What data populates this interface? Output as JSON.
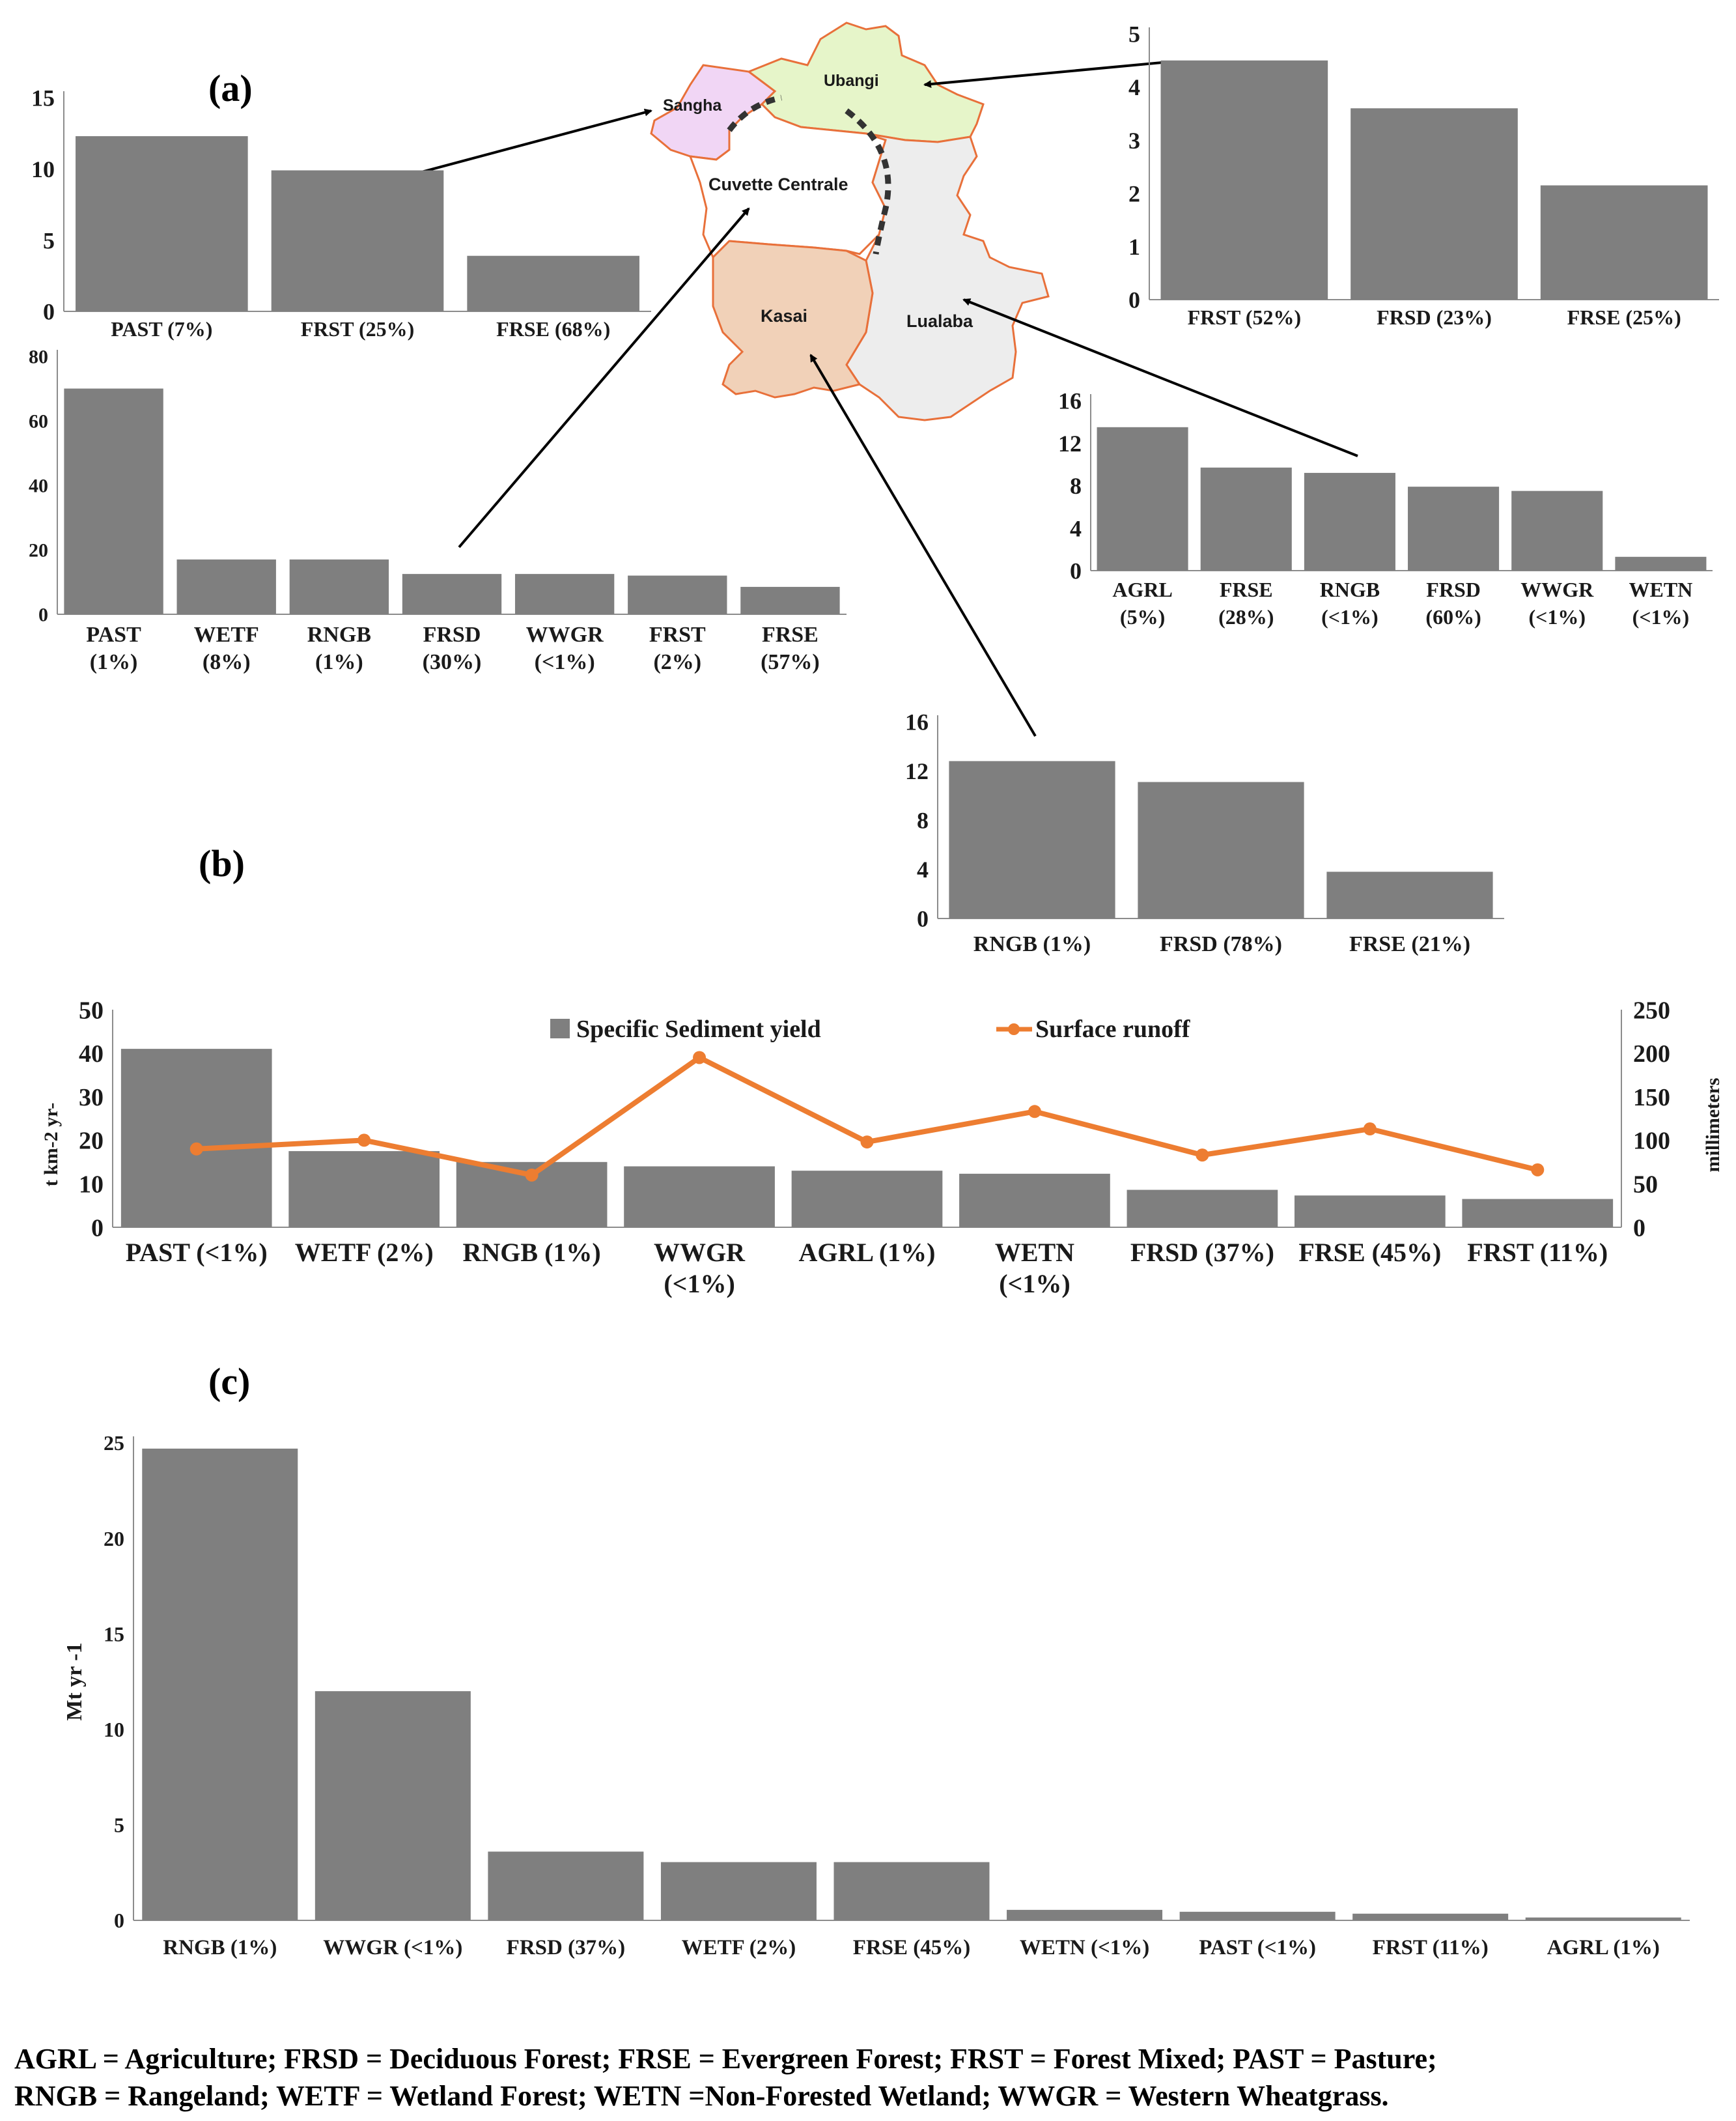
{
  "figure": {
    "panel_a_label": "(a)",
    "panel_b_label": "(b)",
    "panel_c_label": "(c)",
    "footnote_line1": "AGRL = Agriculture; FRSD = Deciduous Forest; FRSE = Evergreen Forest; FRST = Forest Mixed; PAST = Pasture;",
    "footnote_line2": "RNGB = Rangeland; WETF = Wetland Forest; WETN =Non-Forested Wetland; WWGR = Western Wheatgrass."
  },
  "map": {
    "regions": [
      "Sangha",
      "Ubangi",
      "Cuvette Centrale",
      "Kasai",
      "Lualaba"
    ],
    "colors": {
      "sangha": "#f1d6f5",
      "ubangi": "#e6f5c9",
      "cuvette": "#ffffff",
      "kasai": "#f1d1b8",
      "lualaba": "#ededed",
      "border": "#e8703a"
    }
  },
  "chart_data": [
    {
      "id": "sangha",
      "type": "bar",
      "title": "",
      "region": "Sangha",
      "categories": [
        "PAST (7%)",
        "FRST (25%)",
        "FRSE (68%)"
      ],
      "values": [
        12.3,
        9.9,
        3.9
      ],
      "ylim": [
        0,
        15
      ],
      "yticks": [
        0,
        5,
        10,
        15
      ],
      "color": "#7f7f7f"
    },
    {
      "id": "ubangi",
      "type": "bar",
      "title": "",
      "region": "Ubangi",
      "categories": [
        "FRST (52%)",
        "FRSD (23%)",
        "FRSE (25%)"
      ],
      "values": [
        4.5,
        3.6,
        2.15
      ],
      "ylim": [
        0,
        5
      ],
      "yticks": [
        0,
        1,
        2,
        3,
        4,
        5
      ],
      "color": "#7f7f7f"
    },
    {
      "id": "cuvette",
      "type": "bar",
      "title": "",
      "region": "Cuvette Centrale",
      "categories": [
        [
          "PAST",
          "(1%)"
        ],
        [
          "WETF",
          "(8%)"
        ],
        [
          "RNGB",
          "(1%)"
        ],
        [
          "FRSD",
          "(30%)"
        ],
        [
          "WWGR",
          "(<1%)"
        ],
        [
          "FRST",
          "(2%)"
        ],
        [
          "FRSE",
          "(57%)"
        ]
      ],
      "values": [
        70,
        17,
        17,
        12.5,
        12.5,
        12,
        8.5
      ],
      "ylim": [
        0,
        80
      ],
      "yticks": [
        0,
        20,
        40,
        60,
        80
      ],
      "color": "#7f7f7f"
    },
    {
      "id": "lualaba",
      "type": "bar",
      "title": "",
      "region": "Lualaba",
      "categories": [
        [
          "AGRL",
          "(5%)"
        ],
        [
          "FRSE",
          "(28%)"
        ],
        [
          "RNGB",
          "(<1%)"
        ],
        [
          "FRSD",
          "(60%)"
        ],
        [
          "WWGR",
          "(<1%)"
        ],
        [
          "WETN",
          "(<1%)"
        ]
      ],
      "values": [
        13.5,
        9.7,
        9.2,
        7.9,
        7.5,
        1.3
      ],
      "ylim": [
        0,
        16
      ],
      "yticks": [
        0,
        4,
        8,
        12,
        16
      ],
      "color": "#7f7f7f"
    },
    {
      "id": "kasai",
      "type": "bar",
      "title": "",
      "region": "Kasai",
      "categories": [
        "RNGB (1%)",
        "FRSD (78%)",
        "FRSE (21%)"
      ],
      "values": [
        12.8,
        11.1,
        3.8
      ],
      "ylim": [
        0,
        16
      ],
      "yticks": [
        0,
        4,
        8,
        12,
        16
      ],
      "color": "#7f7f7f"
    },
    {
      "id": "basin",
      "type": "bar+line",
      "title": "",
      "categories": [
        [
          "PAST (<1%)"
        ],
        [
          "WETF (2%)"
        ],
        [
          "RNGB (1%)"
        ],
        [
          "WWGR",
          "(<1%)"
        ],
        [
          "AGRL (1%)"
        ],
        [
          "WETN",
          "(<1%)"
        ],
        [
          "FRSD (37%)"
        ],
        [
          "FRSE (45%)"
        ],
        [
          "FRST (11%)"
        ]
      ],
      "series": [
        {
          "name": "Specific Sediment yield",
          "kind": "bar",
          "axis": "left",
          "color": "#7f7f7f",
          "values": [
            41,
            17.5,
            15,
            14,
            13,
            12.3,
            8.6,
            7.3,
            6.5
          ]
        },
        {
          "name": "Surface runoff",
          "kind": "line",
          "axis": "right",
          "color": "#ed7d31",
          "values": [
            90,
            100,
            60,
            195,
            98,
            133,
            83,
            113,
            66
          ]
        }
      ],
      "ylabel": "t km-2 yr-",
      "y2label": "millimeters",
      "ylim": [
        0,
        50
      ],
      "yticks": [
        0,
        10,
        20,
        30,
        40,
        50
      ],
      "y2lim": [
        0,
        250
      ],
      "y2ticks": [
        0,
        50,
        100,
        150,
        200,
        250
      ],
      "legend": "top-center"
    },
    {
      "id": "totals",
      "type": "bar",
      "title": "",
      "categories": [
        "RNGB (1%)",
        "WWGR (<1%)",
        "FRSD (37%)",
        "WETF (2%)",
        "FRSE (45%)",
        "WETN (<1%)",
        "PAST (<1%)",
        "FRST (11%)",
        "AGRL (1%)"
      ],
      "values": [
        24.7,
        12,
        3.6,
        3.05,
        3.05,
        0.55,
        0.45,
        0.35,
        0.15
      ],
      "ylabel": "Mt yr -1",
      "ylim": [
        0,
        25
      ],
      "yticks": [
        0,
        5,
        10,
        15,
        20,
        25
      ],
      "color": "#7f7f7f"
    }
  ]
}
